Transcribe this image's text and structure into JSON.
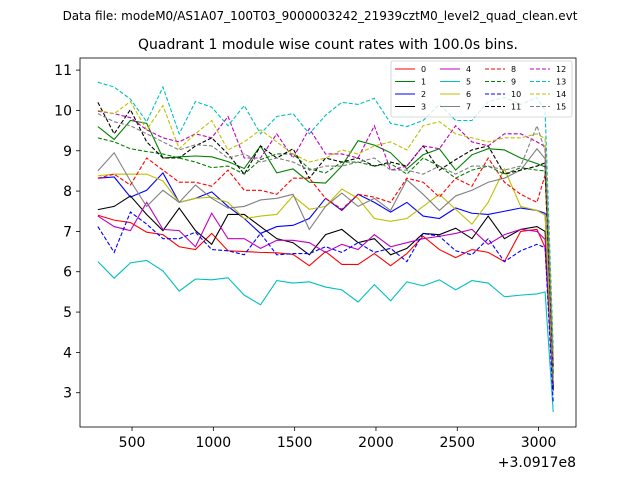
{
  "chart_data": {
    "type": "line",
    "suptitle": "Data file: modeM0/AS1A07_100T03_9000003242_21939cztM0_level2_quad_clean.evt",
    "title": "Quadrant 1 module wise count rates with 100.0s bins.",
    "xlabel": "",
    "ylabel": "",
    "x_offset_label": "+3.0917e8",
    "xlim": [
      180,
      3230
    ],
    "ylim": [
      2.15,
      11.3
    ],
    "xticks": [
      500,
      1000,
      1500,
      2000,
      2500,
      3000
    ],
    "yticks": [
      3,
      4,
      5,
      6,
      7,
      8,
      9,
      10,
      11
    ],
    "legend_position": "top-right",
    "x": [
      290,
      390,
      490,
      590,
      690,
      790,
      890,
      990,
      1090,
      1190,
      1290,
      1390,
      1490,
      1590,
      1690,
      1790,
      1890,
      1990,
      2090,
      2190,
      2290,
      2390,
      2490,
      2590,
      2690,
      2790,
      2890,
      2990,
      3040,
      3090
    ],
    "series": [
      {
        "name": "0",
        "color": "#ff0000",
        "dash": "solid",
        "values": [
          7.4,
          7.28,
          7.22,
          6.98,
          6.92,
          6.62,
          6.55,
          6.95,
          6.52,
          6.5,
          6.48,
          6.47,
          6.43,
          6.15,
          6.5,
          6.18,
          6.18,
          6.45,
          6.15,
          6.45,
          6.88,
          6.55,
          6.35,
          6.55,
          6.48,
          6.25,
          7.0,
          7.05,
          6.6,
          3.25
        ]
      },
      {
        "name": "1",
        "color": "#008000",
        "dash": "solid",
        "values": [
          9.6,
          9.28,
          9.75,
          9.68,
          8.82,
          8.85,
          8.87,
          8.85,
          8.73,
          8.56,
          9.12,
          8.45,
          8.55,
          8.22,
          8.2,
          8.62,
          9.25,
          9.14,
          8.95,
          8.55,
          8.9,
          9.05,
          8.52,
          8.9,
          9.05,
          9.02,
          8.82,
          8.68,
          8.6,
          3.15
        ]
      },
      {
        "name": "2",
        "color": "#0000ff",
        "dash": "solid",
        "values": [
          8.32,
          8.35,
          7.85,
          8.02,
          8.45,
          7.72,
          7.82,
          7.98,
          7.62,
          7.32,
          6.95,
          7.12,
          7.15,
          7.32,
          7.82,
          7.52,
          7.92,
          7.72,
          7.48,
          7.72,
          7.38,
          7.32,
          7.58,
          7.45,
          7.42,
          7.5,
          7.58,
          7.52,
          7.45,
          3.05
        ]
      },
      {
        "name": "3",
        "color": "#000000",
        "dash": "solid",
        "values": [
          7.54,
          7.62,
          7.88,
          7.42,
          7.02,
          7.58,
          7.02,
          6.68,
          7.42,
          7.42,
          7.12,
          6.82,
          6.72,
          6.42,
          6.92,
          7.05,
          6.72,
          6.82,
          6.42,
          6.58,
          6.95,
          6.92,
          7.08,
          6.82,
          7.38,
          6.82,
          7.05,
          7.12,
          7.0,
          3.1
        ]
      },
      {
        "name": "4",
        "color": "#bf00bf",
        "dash": "solid",
        "values": [
          7.38,
          7.12,
          7.02,
          7.72,
          7.05,
          7.02,
          6.62,
          7.45,
          6.82,
          6.82,
          6.58,
          6.78,
          6.78,
          6.72,
          6.48,
          6.68,
          6.55,
          6.92,
          6.62,
          6.72,
          6.82,
          6.88,
          6.95,
          7.05,
          6.68,
          6.92,
          7.05,
          7.0,
          6.8,
          3.2
        ]
      },
      {
        "name": "5",
        "color": "#00bfbf",
        "dash": "solid",
        "values": [
          6.25,
          5.84,
          6.22,
          6.28,
          6.02,
          5.52,
          5.82,
          5.8,
          5.85,
          5.42,
          5.18,
          5.78,
          5.72,
          5.75,
          5.62,
          5.55,
          5.25,
          5.68,
          5.28,
          5.75,
          5.65,
          5.8,
          5.55,
          5.78,
          5.72,
          5.38,
          5.42,
          5.45,
          5.5,
          2.52
        ]
      },
      {
        "name": "6",
        "color": "#bfbf00",
        "dash": "solid",
        "values": [
          8.38,
          8.42,
          8.42,
          8.42,
          8.25,
          7.72,
          7.82,
          7.85,
          7.72,
          7.32,
          7.38,
          7.42,
          7.88,
          7.55,
          7.62,
          8.05,
          7.82,
          7.32,
          7.25,
          7.32,
          7.62,
          7.92,
          7.55,
          7.18,
          7.72,
          8.55,
          7.62,
          7.52,
          7.4,
          3.3
        ]
      },
      {
        "name": "7",
        "color": "#808080",
        "dash": "solid",
        "values": [
          8.5,
          8.95,
          8.25,
          7.62,
          8.02,
          7.72,
          8.15,
          7.82,
          7.58,
          7.62,
          7.78,
          7.82,
          7.92,
          7.05,
          7.62,
          7.95,
          7.62,
          7.82,
          7.52,
          8.28,
          7.92,
          7.52,
          7.88,
          8.02,
          8.22,
          8.32,
          8.52,
          9.05,
          8.8,
          3.35
        ]
      },
      {
        "name": "8",
        "color": "#ff0000",
        "dash": "dashed",
        "values": [
          8.32,
          8.42,
          8.15,
          8.82,
          8.52,
          8.22,
          8.22,
          8.12,
          8.52,
          8.02,
          8.02,
          7.92,
          8.32,
          8.32,
          7.82,
          7.55,
          7.92,
          7.85,
          7.72,
          8.32,
          8.22,
          7.85,
          8.32,
          8.12,
          8.82,
          8.22,
          7.92,
          7.72,
          8.4,
          3.45
        ]
      },
      {
        "name": "9",
        "color": "#008000",
        "dash": "dashed",
        "values": [
          9.32,
          9.22,
          9.05,
          8.98,
          8.92,
          8.82,
          8.72,
          8.58,
          8.62,
          8.42,
          8.78,
          8.92,
          8.92,
          8.55,
          8.45,
          8.72,
          8.72,
          8.62,
          8.68,
          8.42,
          8.82,
          8.62,
          8.32,
          8.52,
          8.62,
          8.42,
          8.58,
          8.52,
          8.5,
          3.5
        ]
      },
      {
        "name": "10",
        "color": "#0000ff",
        "dash": "dashed",
        "values": [
          7.12,
          6.48,
          7.48,
          7.18,
          6.82,
          6.82,
          6.98,
          6.55,
          6.52,
          6.42,
          6.95,
          6.42,
          6.45,
          6.45,
          6.62,
          6.48,
          6.72,
          6.48,
          6.58,
          6.25,
          6.95,
          6.88,
          6.52,
          6.42,
          6.82,
          6.25,
          6.52,
          6.68,
          6.6,
          2.75
        ]
      },
      {
        "name": "11",
        "color": "#000000",
        "dash": "dashed",
        "values": [
          10.2,
          9.42,
          10.02,
          9.22,
          8.82,
          8.82,
          9.12,
          9.32,
          8.92,
          8.42,
          9.12,
          8.82,
          9.05,
          8.32,
          8.82,
          8.72,
          8.82,
          8.62,
          8.72,
          8.62,
          9.12,
          8.52,
          8.78,
          9.02,
          9.12,
          8.42,
          8.52,
          8.62,
          8.7,
          3.6
        ]
      },
      {
        "name": "12",
        "color": "#bf00bf",
        "dash": "dashed",
        "values": [
          9.98,
          9.92,
          9.82,
          9.52,
          9.32,
          9.22,
          9.42,
          9.32,
          9.85,
          8.82,
          8.82,
          9.42,
          8.82,
          9.55,
          8.92,
          8.92,
          8.82,
          9.62,
          8.52,
          8.62,
          9.12,
          9.05,
          9.62,
          9.22,
          9.12,
          9.42,
          9.42,
          9.22,
          9.1,
          3.8
        ]
      },
      {
        "name": "13",
        "color": "#00bfbf",
        "dash": "dashed",
        "values": [
          10.7,
          10.58,
          10.28,
          9.72,
          10.58,
          9.42,
          10.22,
          10.08,
          9.62,
          10.12,
          9.42,
          9.85,
          9.92,
          9.42,
          9.88,
          10.2,
          10.15,
          10.3,
          9.68,
          9.6,
          9.75,
          10.15,
          9.75,
          9.75,
          10.22,
          10.32,
          10.15,
          10.32,
          10.0,
          4.1
        ]
      },
      {
        "name": "14",
        "color": "#bfbf00",
        "dash": "dashed",
        "values": [
          10.0,
          9.92,
          10.22,
          9.52,
          10.12,
          9.05,
          9.42,
          9.75,
          9.02,
          9.22,
          9.52,
          9.22,
          8.92,
          8.72,
          8.82,
          9.02,
          8.92,
          9.12,
          9.22,
          9.02,
          9.62,
          9.72,
          9.42,
          9.32,
          9.22,
          9.32,
          9.32,
          9.42,
          9.3,
          3.9
        ]
      },
      {
        "name": "15",
        "color": "#808080",
        "dash": "dashed",
        "values": [
          9.92,
          9.72,
          9.62,
          9.42,
          9.22,
          9.02,
          9.15,
          9.12,
          8.82,
          8.92,
          8.72,
          8.82,
          8.72,
          8.52,
          8.62,
          8.62,
          8.72,
          8.82,
          8.52,
          8.52,
          8.42,
          8.62,
          8.42,
          8.62,
          8.62,
          8.52,
          8.62,
          9.62,
          9.0,
          3.7
        ]
      }
    ]
  }
}
